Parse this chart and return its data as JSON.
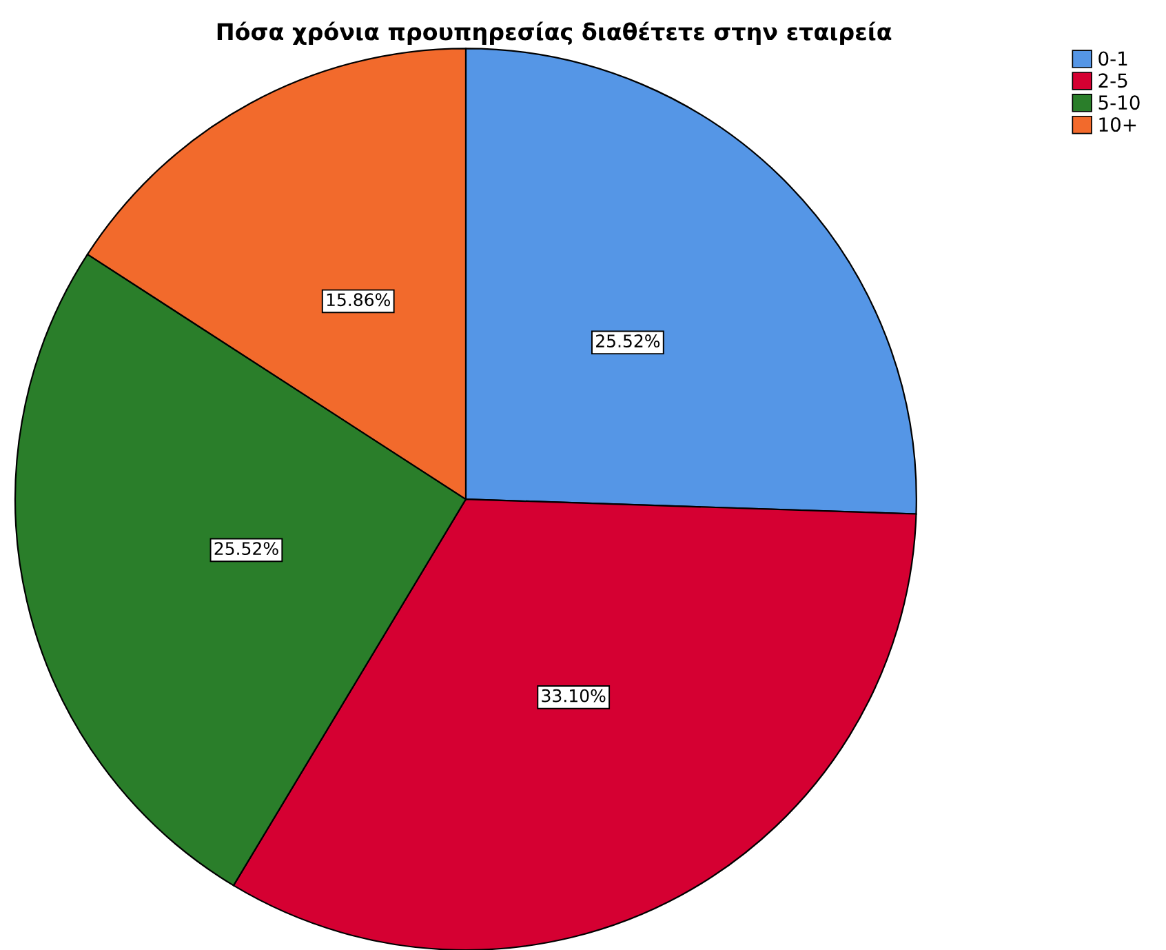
{
  "chart_data": {
    "type": "pie",
    "title": "Πόσα χρόνια προυπηρεσίας διαθέτετε στην εταιρεία",
    "categories": [
      "0-1",
      "2-5",
      "5-10",
      "10+"
    ],
    "values": [
      25.52,
      33.1,
      25.52,
      15.86
    ],
    "value_labels": [
      "25.52%",
      "33.10%",
      "25.52%",
      "15.86%"
    ],
    "colors": [
      "#5596e6",
      "#d50032",
      "#2a7e2a",
      "#f26a2c"
    ],
    "legend": "top right"
  }
}
